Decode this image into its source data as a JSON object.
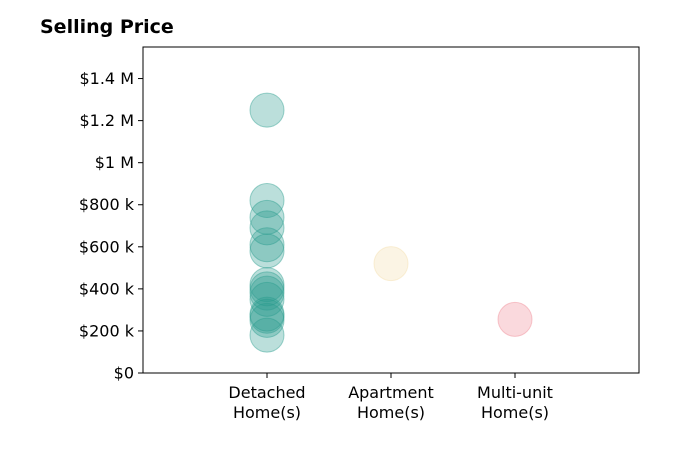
{
  "title": "Selling Price",
  "chart_data": {
    "type": "scatter",
    "title": "Selling Price",
    "xlabel": "",
    "ylabel": "",
    "categories": [
      [
        "Detached",
        "Home(s)"
      ],
      [
        "Apartment",
        "Home(s)"
      ],
      [
        "Multi-unit",
        "Home(s)"
      ]
    ],
    "ylim": [
      0,
      1550000
    ],
    "y_ticks": [
      0,
      200000,
      400000,
      600000,
      800000,
      1000000,
      1200000,
      1400000
    ],
    "y_tick_labels": [
      "$0",
      "$200 k",
      "$400 k",
      "$600 k",
      "$800 k",
      "$1 M",
      "$1.2 M",
      "$1.4 M"
    ],
    "grid": false,
    "series": [
      {
        "category_index": 0,
        "color": "#2a9d8f",
        "values": [
          1250000,
          820000,
          740000,
          690000,
          610000,
          580000,
          420000,
          400000,
          380000,
          350000,
          280000,
          270000,
          250000,
          180000
        ]
      },
      {
        "category_index": 1,
        "color": "#f4deab",
        "values": [
          520000
        ]
      },
      {
        "category_index": 2,
        "color": "#ef8a95",
        "values": [
          255000
        ]
      }
    ]
  }
}
